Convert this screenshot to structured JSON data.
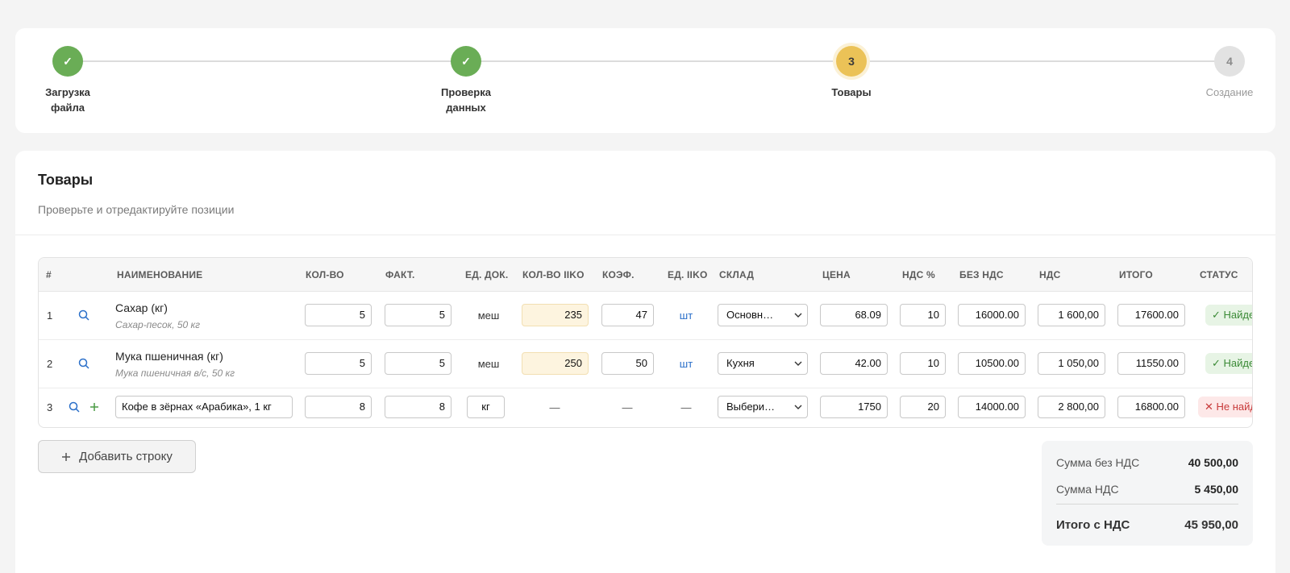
{
  "stepper": {
    "steps": [
      {
        "label_line1": "Загрузка",
        "label_line2": "файла",
        "state": "done",
        "mark": "✓"
      },
      {
        "label_line1": "Проверка",
        "label_line2": "данных",
        "state": "done",
        "mark": "✓"
      },
      {
        "label_line1": "Товары",
        "label_line2": "",
        "state": "active",
        "mark": "3"
      },
      {
        "label_line1": "Создание",
        "label_line2": "",
        "state": "pending",
        "mark": "4"
      }
    ]
  },
  "section": {
    "title": "Товары",
    "subtitle": "Проверьте и отредактируйте позиции"
  },
  "table": {
    "headers": {
      "num": "#",
      "name": "НАИМЕНОВАНИЕ",
      "qty": "КОЛ-ВО",
      "fact": "ФАКТ.",
      "unit_doc": "ЕД. ДОК.",
      "qty_iiko": "КОЛ-ВО IIKO",
      "coef": "КОЭФ.",
      "unit_iiko": "ЕД. IIKO",
      "warehouse": "СКЛАД",
      "price": "ЦЕНА",
      "vat_pct": "НДС %",
      "no_vat": "БЕЗ НДС",
      "vat": "НДС",
      "total": "ИТОГО",
      "status": "СТАТУС"
    },
    "rows": [
      {
        "num": "1",
        "name": "Сахар (кг)",
        "sub": "Сахар-песок, 50 кг",
        "qty": "5",
        "fact": "5",
        "unit_doc": "меш",
        "qty_iiko": "235",
        "coef": "47",
        "unit_iiko": "шт",
        "warehouse": "Основн…",
        "price": "68.09",
        "vat_pct": "10",
        "no_vat": "16000.00",
        "vat": "1 600,00",
        "total": "17600.00",
        "status": "✓ Найде"
      },
      {
        "num": "2",
        "name": "Мука пшеничная (кг)",
        "sub": "Мука пшеничная в/с, 50 кг",
        "qty": "5",
        "fact": "5",
        "unit_doc": "меш",
        "qty_iiko": "250",
        "coef": "50",
        "unit_iiko": "шт",
        "warehouse": "Кухня",
        "price": "42.00",
        "vat_pct": "10",
        "no_vat": "10500.00",
        "vat": "1 050,00",
        "total": "11550.00",
        "status": "✓ Найде"
      },
      {
        "num": "3",
        "name": "Кофе в зёрнах «Арабика», 1 кг",
        "sub": "",
        "qty": "8",
        "fact": "8",
        "unit_doc": "кг",
        "qty_iiko": "—",
        "coef": "—",
        "unit_iiko": "—",
        "warehouse": "Выбери…",
        "price": "1750",
        "vat_pct": "20",
        "no_vat": "14000.00",
        "vat": "2 800,00",
        "total": "16800.00",
        "status": "✕ Не найд"
      }
    ]
  },
  "add_row_label": "Добавить строку",
  "totals": {
    "no_vat_label": "Сумма без НДС",
    "no_vat_value": "40 500,00",
    "vat_label": "Сумма НДС",
    "vat_value": "5 450,00",
    "total_label": "Итого с НДС",
    "total_value": "45 950,00"
  },
  "colors": {
    "done": "#6aad56",
    "active": "#ebc257",
    "pending": "#e2e2e2",
    "link": "#2a6fc9",
    "ok": "#3b8a36",
    "bad": "#c83a3a"
  },
  "icons": {
    "check": "check-icon",
    "search": "search-icon",
    "plus": "plus-icon",
    "chevron": "chevron-down-icon"
  }
}
